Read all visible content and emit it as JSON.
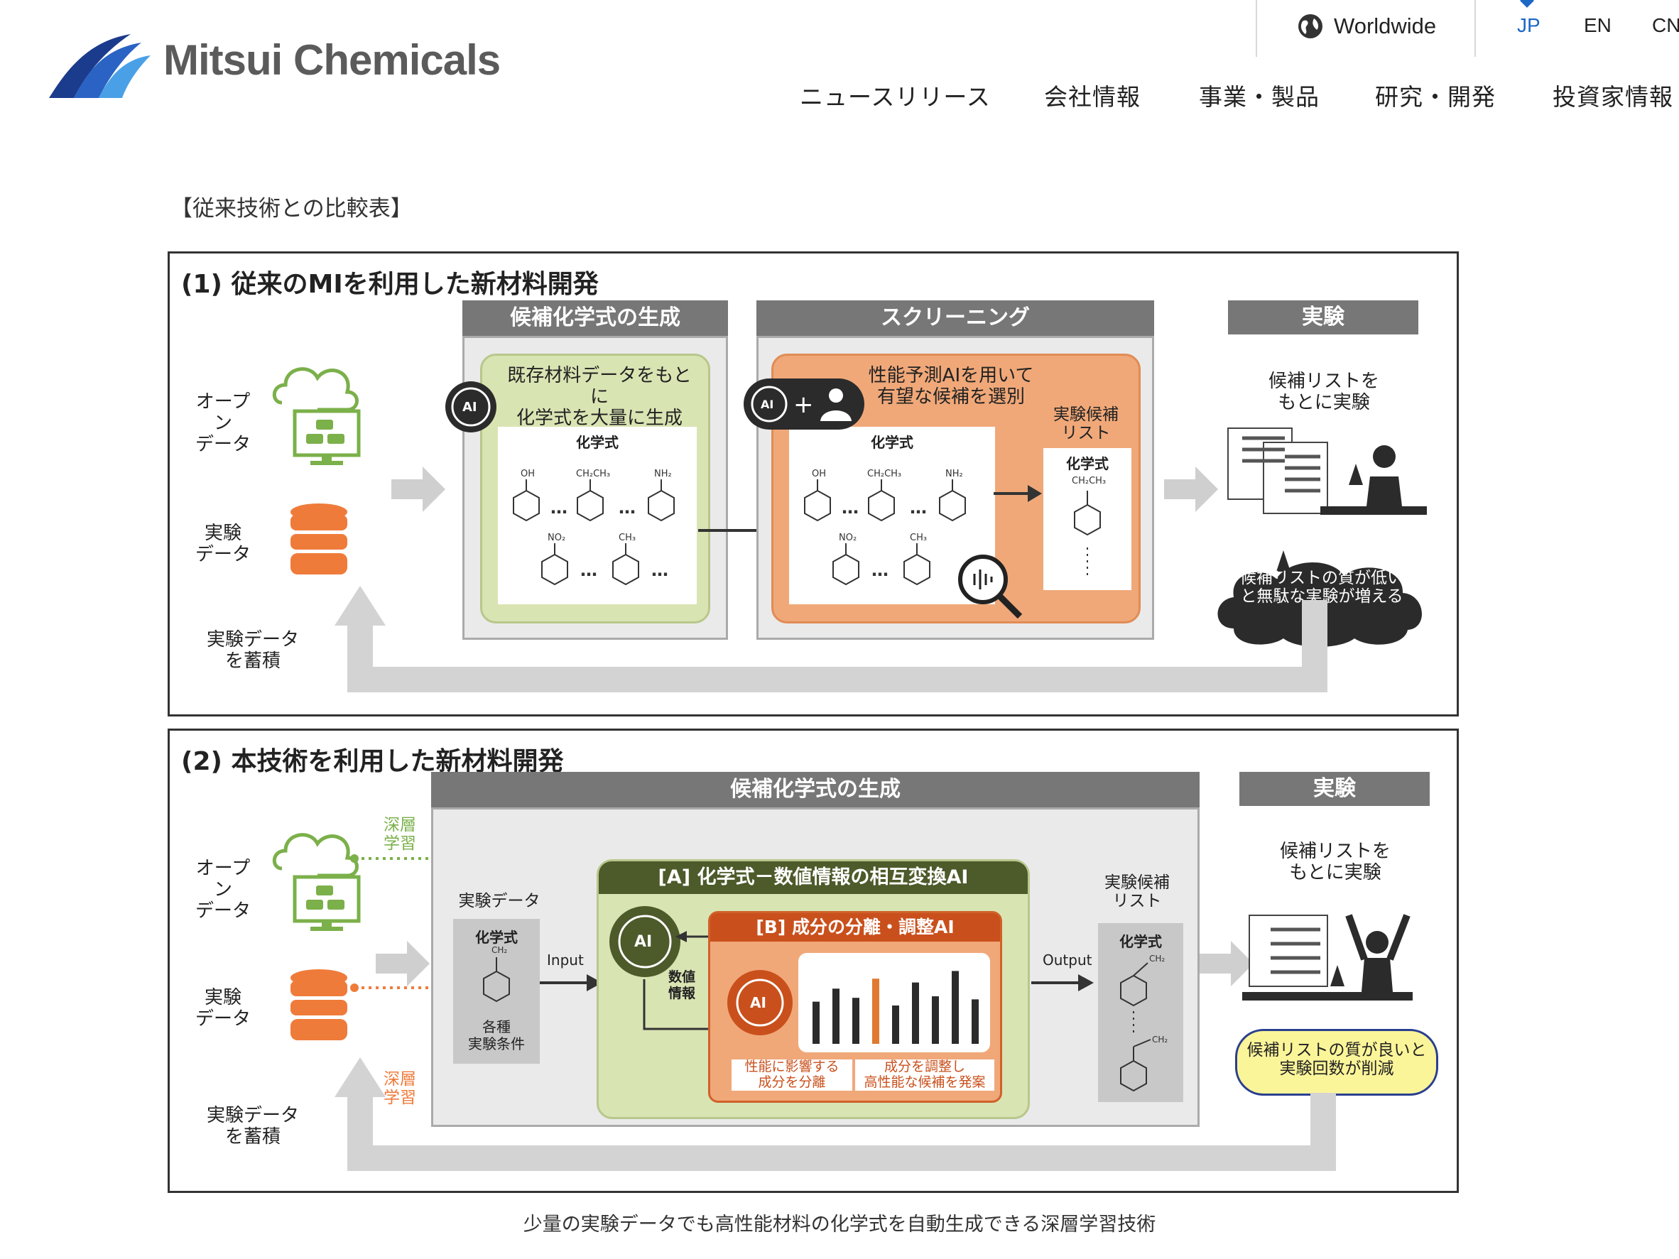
{
  "header": {
    "logo_text": "Mitsui Chemicals",
    "worldwide_label": "Worldwide",
    "languages": [
      "JP",
      "EN",
      "CN"
    ],
    "active_language": "JP",
    "nav": [
      "ニュースリリース",
      "会社情報",
      "事業・製品",
      "研究・開発",
      "投資家情報"
    ]
  },
  "section_label": "【従来技術との比較表】",
  "figure": {
    "panel1": {
      "title": "(1) 従来のMIを利用した新材料開発",
      "open_data": [
        "オープン",
        "データ"
      ],
      "exp_data": [
        "実験",
        "データ"
      ],
      "accumulate": [
        "実験データ",
        "を蓄積"
      ],
      "gen_head": "候補化学式の生成",
      "gen_text": [
        "既存材料データをもとに",
        "化学式を大量に生成"
      ],
      "formula_label": "化学式",
      "screen_head": "スクリーニング",
      "screen_text": [
        "性能予測AIを用いて",
        "有望な候補を選別"
      ],
      "cand_list": [
        "実験候補",
        "リスト"
      ],
      "exp_head": "実験",
      "exp_text": [
        "候補リストを",
        "もとに実験"
      ],
      "cloud_text": [
        "候補リストの質が低い",
        "と無駄な実験が増える"
      ]
    },
    "panel2": {
      "title": "(2) 本技術を利用した新材料開発",
      "open_data": [
        "オープン",
        "データ"
      ],
      "exp_data": [
        "実験",
        "データ"
      ],
      "accumulate": [
        "実験データ",
        "を蓄積"
      ],
      "deep_learning": [
        "深層",
        "学習"
      ],
      "gen_head": "候補化学式の生成",
      "exp_data_label": "実験データ",
      "formula_label": "化学式",
      "conditions": [
        "各種",
        "実験条件"
      ],
      "input": "Input",
      "output": "Output",
      "ai_a": "[A] 化学式－数値情報の相互変換AI",
      "ai_b": "[B] 成分の分離・調整AI",
      "numeric_info": [
        "数値",
        "情報"
      ],
      "separate": [
        "性能に影響する",
        "成分を分離"
      ],
      "adjust": [
        "成分を調整し",
        "高性能な候補を発案"
      ],
      "cand_list": [
        "実験候補",
        "リスト"
      ],
      "exp_head": "実験",
      "exp_text": [
        "候補リストを",
        "もとに実験"
      ],
      "bubble_text": [
        "候補リストの質が良いと",
        "実験回数が削減"
      ]
    },
    "chem": {
      "oh": "OH",
      "ch2ch3": "CH₂CH₃",
      "nh2": "NH₂",
      "no2": "NO₂",
      "ch3": "CH₃",
      "ch2": "CH₂",
      "ellipsis": "…",
      "ai": "AI"
    },
    "bar_values": [
      0.55,
      0.72,
      0.6,
      0.85,
      0.5,
      0.8,
      0.62,
      0.95,
      0.58
    ]
  },
  "caption": "少量の実験データでも高性能材料の化学式を自動生成できる深層学習技術"
}
